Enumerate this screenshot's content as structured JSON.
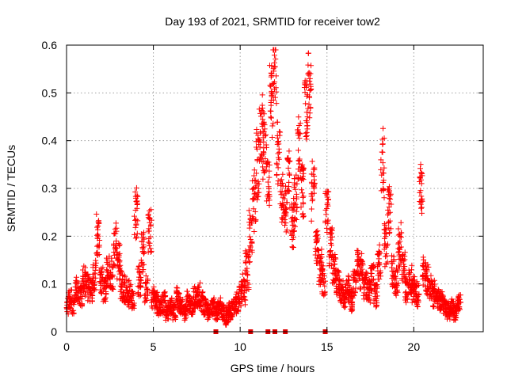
{
  "chart_data": {
    "type": "scatter",
    "title": "Day 193 of 2021, SRMTID for receiver tow2",
    "xlabel": "GPS time / hours",
    "ylabel": "SRMTID / TECUs",
    "xlim": [
      0,
      24
    ],
    "ylim": [
      0,
      0.6
    ],
    "x_ticks": [
      0,
      5,
      10,
      15,
      20
    ],
    "y_ticks": [
      0,
      0.1,
      0.2,
      0.3,
      0.4,
      0.5,
      0.6
    ],
    "x_tick_labels": [
      "0",
      "5",
      "10",
      "15",
      "20"
    ],
    "y_tick_labels": [
      "0",
      "0.1",
      "0.2",
      "0.3",
      "0.4",
      "0.5",
      "0.6"
    ],
    "grid": true,
    "marker": "+",
    "color": "#ff0000",
    "series": [
      {
        "name": "SRMTID",
        "x": [
          0.0,
          0.2,
          0.4,
          0.6,
          0.8,
          1.0,
          1.2,
          1.4,
          1.6,
          1.8,
          2.0,
          2.2,
          2.4,
          2.6,
          2.8,
          3.0,
          3.2,
          3.4,
          3.6,
          3.8,
          4.0,
          4.2,
          4.4,
          4.6,
          4.8,
          5.0,
          5.2,
          5.4,
          5.6,
          5.8,
          6.0,
          6.2,
          6.4,
          6.6,
          6.8,
          7.0,
          7.2,
          7.4,
          7.6,
          7.8,
          8.0,
          8.2,
          8.4,
          8.6,
          8.8,
          9.0,
          9.2,
          9.4,
          9.6,
          9.8,
          10.0,
          10.2,
          10.4,
          10.6,
          10.8,
          11.0,
          11.2,
          11.4,
          11.6,
          11.8,
          12.0,
          12.2,
          12.4,
          12.6,
          12.8,
          13.0,
          13.2,
          13.4,
          13.6,
          13.8,
          14.0,
          14.2,
          14.4,
          14.6,
          14.8,
          15.0,
          15.2,
          15.4,
          15.6,
          15.8,
          16.0,
          16.2,
          16.4,
          16.6,
          16.8,
          17.0,
          17.2,
          17.4,
          17.6,
          17.8,
          18.0,
          18.2,
          18.4,
          18.6,
          18.8,
          19.0,
          19.2,
          19.4,
          19.6,
          19.8,
          20.0,
          20.2,
          20.4,
          20.6,
          20.8,
          21.0,
          21.2,
          21.4,
          21.6,
          21.8,
          22.0,
          22.2,
          22.4,
          22.6
        ],
        "y": [
          0.06,
          0.08,
          0.07,
          0.1,
          0.09,
          0.12,
          0.11,
          0.1,
          0.13,
          0.22,
          0.12,
          0.1,
          0.14,
          0.13,
          0.2,
          0.16,
          0.11,
          0.1,
          0.09,
          0.08,
          0.27,
          0.12,
          0.19,
          0.1,
          0.23,
          0.08,
          0.07,
          0.06,
          0.07,
          0.05,
          0.06,
          0.05,
          0.08,
          0.06,
          0.05,
          0.07,
          0.06,
          0.08,
          0.09,
          0.07,
          0.06,
          0.05,
          0.06,
          0.05,
          0.06,
          0.05,
          0.04,
          0.05,
          0.06,
          0.07,
          0.09,
          0.1,
          0.15,
          0.22,
          0.3,
          0.38,
          0.45,
          0.42,
          0.35,
          0.52,
          0.58,
          0.4,
          0.3,
          0.28,
          0.35,
          0.25,
          0.3,
          0.42,
          0.33,
          0.5,
          0.54,
          0.32,
          0.2,
          0.15,
          0.12,
          0.28,
          0.2,
          0.15,
          0.12,
          0.1,
          0.09,
          0.1,
          0.08,
          0.12,
          0.16,
          0.14,
          0.11,
          0.1,
          0.13,
          0.09,
          0.16,
          0.38,
          0.2,
          0.28,
          0.14,
          0.12,
          0.2,
          0.15,
          0.1,
          0.12,
          0.1,
          0.09,
          0.32,
          0.14,
          0.12,
          0.1,
          0.09,
          0.08,
          0.07,
          0.06,
          0.05,
          0.06,
          0.05,
          0.07
        ],
        "spread": [
          0.02,
          0.025,
          0.025,
          0.03,
          0.03,
          0.035,
          0.035,
          0.03,
          0.035,
          0.05,
          0.035,
          0.03,
          0.04,
          0.04,
          0.05,
          0.045,
          0.035,
          0.03,
          0.03,
          0.025,
          0.06,
          0.04,
          0.05,
          0.03,
          0.05,
          0.025,
          0.025,
          0.02,
          0.025,
          0.02,
          0.02,
          0.02,
          0.025,
          0.02,
          0.02,
          0.025,
          0.02,
          0.025,
          0.03,
          0.025,
          0.02,
          0.02,
          0.02,
          0.02,
          0.02,
          0.02,
          0.02,
          0.02,
          0.025,
          0.025,
          0.03,
          0.035,
          0.05,
          0.06,
          0.07,
          0.08,
          0.09,
          0.08,
          0.07,
          0.09,
          0.08,
          0.07,
          0.06,
          0.06,
          0.07,
          0.06,
          0.07,
          0.08,
          0.07,
          0.09,
          0.08,
          0.07,
          0.05,
          0.04,
          0.035,
          0.06,
          0.05,
          0.04,
          0.035,
          0.03,
          0.03,
          0.03,
          0.03,
          0.035,
          0.04,
          0.04,
          0.035,
          0.03,
          0.035,
          0.03,
          0.04,
          0.08,
          0.05,
          0.06,
          0.04,
          0.035,
          0.05,
          0.04,
          0.03,
          0.035,
          0.03,
          0.03,
          0.06,
          0.035,
          0.035,
          0.03,
          0.03,
          0.025,
          0.025,
          0.02,
          0.02,
          0.02,
          0.02,
          0.025
        ]
      }
    ],
    "zero_markers_x": [
      8.6,
      10.6,
      11.6,
      12.0,
      12.6,
      14.9
    ]
  }
}
